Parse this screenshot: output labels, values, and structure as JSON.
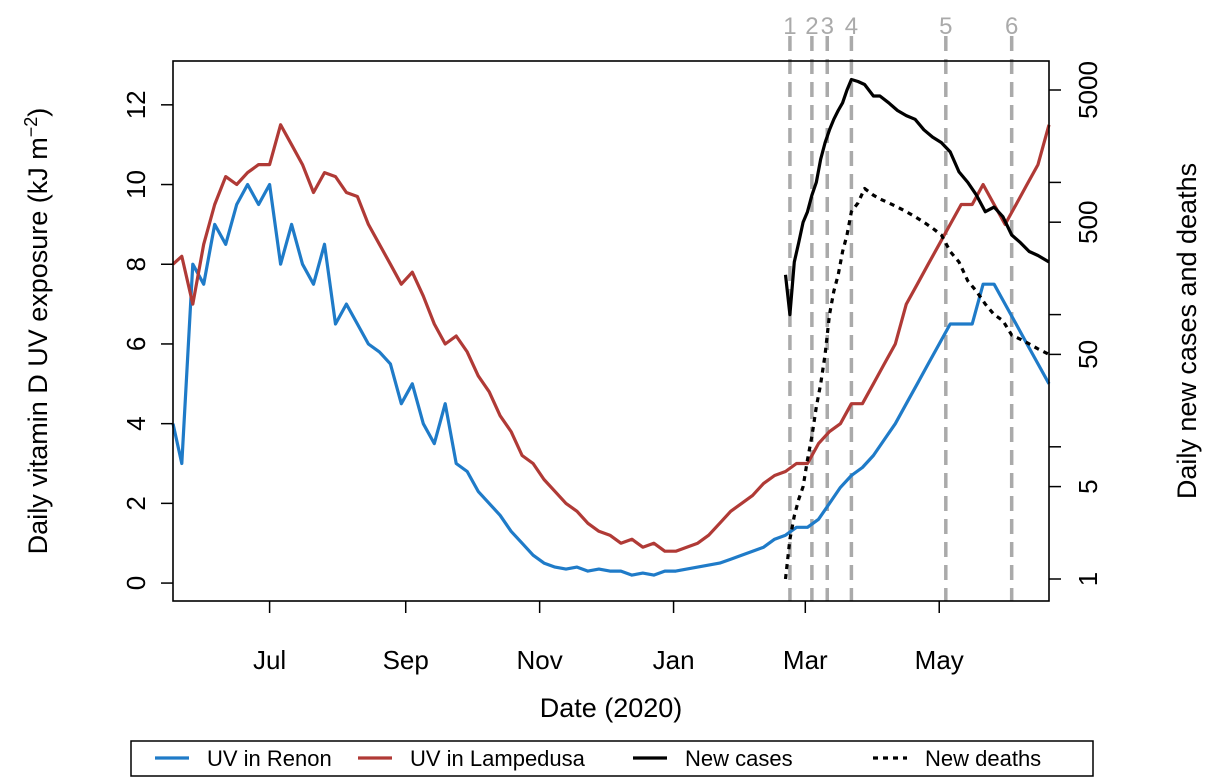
{
  "chart_data": {
    "type": "line",
    "title": "",
    "xlabel": "Date (2020)",
    "ylabel_left_main": "Daily vitamin D UV exposure (kJ m",
    "ylabel_left_exp": "−2",
    "ylabel_left_close": ")",
    "ylabel_right": "Daily new cases and deaths",
    "x_tick_labels": [
      "Jul",
      "Sep",
      "Nov",
      "Jan",
      "Mar",
      "May"
    ],
    "x_ticks": [
      "2019-07-01",
      "2019-09-01",
      "2019-11-01",
      "2020-01-01",
      "2020-03-01",
      "2020-05-01"
    ],
    "xlim": [
      "2019-05-18",
      "2020-06-20"
    ],
    "y_left_ticks": [
      0,
      2,
      4,
      6,
      8,
      10,
      12
    ],
    "ylim_left": [
      -0.45,
      13.1
    ],
    "y_right_scale": "log",
    "y_right_tick_labels": [
      "1",
      "5",
      "50",
      "500",
      "5000"
    ],
    "y_right_ticks": [
      1,
      5,
      50,
      500,
      5000
    ],
    "y_right_minor_ticks": [
      10,
      100,
      1000
    ],
    "grid": false,
    "legend_position": "bottom",
    "events": {
      "labels": [
        "1",
        "2",
        "3",
        "4",
        "5",
        "6"
      ],
      "dates": [
        "2020-02-23",
        "2020-03-04",
        "2020-03-11",
        "2020-03-22",
        "2020-05-04",
        "2020-06-03"
      ],
      "color": "#aaaaaa"
    },
    "series": [
      {
        "name": "UV in Renon",
        "axis": "left",
        "color": "#1f7bc8",
        "x": [
          "2019-05-18",
          "2019-05-22",
          "2019-05-27",
          "2019-06-01",
          "2019-06-06",
          "2019-06-11",
          "2019-06-16",
          "2019-06-21",
          "2019-06-26",
          "2019-07-01",
          "2019-07-06",
          "2019-07-11",
          "2019-07-16",
          "2019-07-21",
          "2019-07-26",
          "2019-07-31",
          "2019-08-05",
          "2019-08-10",
          "2019-08-15",
          "2019-08-20",
          "2019-08-25",
          "2019-08-30",
          "2019-09-04",
          "2019-09-09",
          "2019-09-14",
          "2019-09-19",
          "2019-09-24",
          "2019-09-29",
          "2019-10-04",
          "2019-10-09",
          "2019-10-14",
          "2019-10-19",
          "2019-10-24",
          "2019-10-29",
          "2019-11-03",
          "2019-11-08",
          "2019-11-13",
          "2019-11-18",
          "2019-11-23",
          "2019-11-28",
          "2019-12-03",
          "2019-12-08",
          "2019-12-13",
          "2019-12-18",
          "2019-12-23",
          "2019-12-28",
          "2020-01-02",
          "2020-01-07",
          "2020-01-12",
          "2020-01-17",
          "2020-01-22",
          "2020-01-27",
          "2020-02-01",
          "2020-02-06",
          "2020-02-11",
          "2020-02-16",
          "2020-02-21",
          "2020-02-26",
          "2020-03-02",
          "2020-03-07",
          "2020-03-12",
          "2020-03-17",
          "2020-03-22",
          "2020-03-27",
          "2020-04-01",
          "2020-04-06",
          "2020-04-11",
          "2020-04-16",
          "2020-04-21",
          "2020-04-26",
          "2020-05-01",
          "2020-05-06",
          "2020-05-11",
          "2020-05-16",
          "2020-05-21",
          "2020-05-26",
          "2020-05-31",
          "2020-06-05",
          "2020-06-10",
          "2020-06-15",
          "2020-06-20"
        ],
        "values": [
          4.0,
          3.0,
          8.0,
          7.5,
          9.0,
          8.5,
          9.5,
          10.0,
          9.5,
          10.0,
          8.0,
          9.0,
          8.0,
          7.5,
          8.5,
          6.5,
          7.0,
          6.5,
          6.0,
          5.8,
          5.5,
          4.5,
          5.0,
          4.0,
          3.5,
          4.5,
          3.0,
          2.8,
          2.3,
          2.0,
          1.7,
          1.3,
          1.0,
          0.7,
          0.5,
          0.4,
          0.35,
          0.4,
          0.3,
          0.35,
          0.3,
          0.3,
          0.2,
          0.25,
          0.2,
          0.3,
          0.3,
          0.35,
          0.4,
          0.45,
          0.5,
          0.6,
          0.7,
          0.8,
          0.9,
          1.1,
          1.2,
          1.4,
          1.4,
          1.6,
          2.0,
          2.4,
          2.7,
          2.9,
          3.2,
          3.6,
          4.0,
          4.5,
          5.0,
          5.5,
          6.0,
          6.5,
          6.5,
          6.5,
          7.5,
          7.5,
          7.0,
          6.5,
          6.0,
          5.5,
          5.0
        ]
      },
      {
        "name": "UV in Lampedusa",
        "axis": "left",
        "color": "#b03a36",
        "x": [
          "2019-05-18",
          "2019-05-22",
          "2019-05-27",
          "2019-06-01",
          "2019-06-06",
          "2019-06-11",
          "2019-06-16",
          "2019-06-21",
          "2019-06-26",
          "2019-07-01",
          "2019-07-06",
          "2019-07-11",
          "2019-07-16",
          "2019-07-21",
          "2019-07-26",
          "2019-07-31",
          "2019-08-05",
          "2019-08-10",
          "2019-08-15",
          "2019-08-20",
          "2019-08-25",
          "2019-08-30",
          "2019-09-04",
          "2019-09-09",
          "2019-09-14",
          "2019-09-19",
          "2019-09-24",
          "2019-09-29",
          "2019-10-04",
          "2019-10-09",
          "2019-10-14",
          "2019-10-19",
          "2019-10-24",
          "2019-10-29",
          "2019-11-03",
          "2019-11-08",
          "2019-11-13",
          "2019-11-18",
          "2019-11-23",
          "2019-11-28",
          "2019-12-03",
          "2019-12-08",
          "2019-12-13",
          "2019-12-18",
          "2019-12-23",
          "2019-12-28",
          "2020-01-02",
          "2020-01-07",
          "2020-01-12",
          "2020-01-17",
          "2020-01-22",
          "2020-01-27",
          "2020-02-01",
          "2020-02-06",
          "2020-02-11",
          "2020-02-16",
          "2020-02-21",
          "2020-02-26",
          "2020-03-02",
          "2020-03-07",
          "2020-03-12",
          "2020-03-17",
          "2020-03-22",
          "2020-03-27",
          "2020-04-01",
          "2020-04-06",
          "2020-04-11",
          "2020-04-16",
          "2020-04-21",
          "2020-04-26",
          "2020-05-01",
          "2020-05-06",
          "2020-05-11",
          "2020-05-16",
          "2020-05-21",
          "2020-05-26",
          "2020-05-31",
          "2020-06-05",
          "2020-06-10",
          "2020-06-15",
          "2020-06-20"
        ],
        "values": [
          8.0,
          8.2,
          7.0,
          8.5,
          9.5,
          10.2,
          10.0,
          10.3,
          10.5,
          10.5,
          11.5,
          11.0,
          10.5,
          9.8,
          10.3,
          10.2,
          9.8,
          9.7,
          9.0,
          8.5,
          8.0,
          7.5,
          7.8,
          7.2,
          6.5,
          6.0,
          6.2,
          5.8,
          5.2,
          4.8,
          4.2,
          3.8,
          3.2,
          3.0,
          2.6,
          2.3,
          2.0,
          1.8,
          1.5,
          1.3,
          1.2,
          1.0,
          1.1,
          0.9,
          1.0,
          0.8,
          0.8,
          0.9,
          1.0,
          1.2,
          1.5,
          1.8,
          2.0,
          2.2,
          2.5,
          2.7,
          2.8,
          3.0,
          3.0,
          3.5,
          3.8,
          4.0,
          4.5,
          4.5,
          5.0,
          5.5,
          6.0,
          7.0,
          7.5,
          8.0,
          8.5,
          9.0,
          9.5,
          9.5,
          10.0,
          9.5,
          9.0,
          9.5,
          10.0,
          10.5,
          11.5
        ]
      },
      {
        "name": "New cases",
        "axis": "right",
        "color": "#000000",
        "x": [
          "2020-02-21",
          "2020-02-23",
          "2020-02-25",
          "2020-02-27",
          "2020-02-29",
          "2020-03-02",
          "2020-03-04",
          "2020-03-06",
          "2020-03-08",
          "2020-03-10",
          "2020-03-12",
          "2020-03-14",
          "2020-03-16",
          "2020-03-18",
          "2020-03-20",
          "2020-03-22",
          "2020-03-25",
          "2020-03-28",
          "2020-04-01",
          "2020-04-04",
          "2020-04-08",
          "2020-04-12",
          "2020-04-16",
          "2020-04-20",
          "2020-04-24",
          "2020-04-28",
          "2020-05-02",
          "2020-05-06",
          "2020-05-10",
          "2020-05-14",
          "2020-05-18",
          "2020-05-22",
          "2020-05-26",
          "2020-05-30",
          "2020-06-03",
          "2020-06-07",
          "2020-06-11",
          "2020-06-15",
          "2020-06-20"
        ],
        "values": [
          200,
          100,
          250,
          350,
          500,
          600,
          800,
          1000,
          1500,
          2000,
          2500,
          3000,
          3500,
          4000,
          5000,
          6000,
          5800,
          5500,
          4500,
          4500,
          4000,
          3500,
          3200,
          3000,
          2500,
          2200,
          2000,
          1700,
          1200,
          1000,
          800,
          600,
          650,
          550,
          400,
          350,
          300,
          280,
          250
        ]
      },
      {
        "name": "New deaths",
        "axis": "right",
        "color": "#000000",
        "dashed": true,
        "x": [
          "2020-02-21",
          "2020-02-23",
          "2020-02-25",
          "2020-02-27",
          "2020-02-29",
          "2020-03-02",
          "2020-03-04",
          "2020-03-06",
          "2020-03-08",
          "2020-03-10",
          "2020-03-12",
          "2020-03-14",
          "2020-03-16",
          "2020-03-18",
          "2020-03-20",
          "2020-03-22",
          "2020-03-25",
          "2020-03-28",
          "2020-04-01",
          "2020-04-04",
          "2020-04-08",
          "2020-04-12",
          "2020-04-16",
          "2020-04-20",
          "2020-04-24",
          "2020-04-28",
          "2020-05-02",
          "2020-05-06",
          "2020-05-10",
          "2020-05-14",
          "2020-05-18",
          "2020-05-22",
          "2020-05-26",
          "2020-05-30",
          "2020-06-03",
          "2020-06-07",
          "2020-06-11",
          "2020-06-15",
          "2020-06-20"
        ],
        "values": [
          1,
          2,
          3,
          4,
          5,
          8,
          12,
          20,
          30,
          50,
          100,
          150,
          200,
          300,
          400,
          600,
          700,
          900,
          800,
          750,
          700,
          650,
          600,
          550,
          500,
          450,
          400,
          300,
          250,
          180,
          150,
          120,
          100,
          90,
          70,
          65,
          60,
          55,
          50
        ]
      }
    ]
  }
}
